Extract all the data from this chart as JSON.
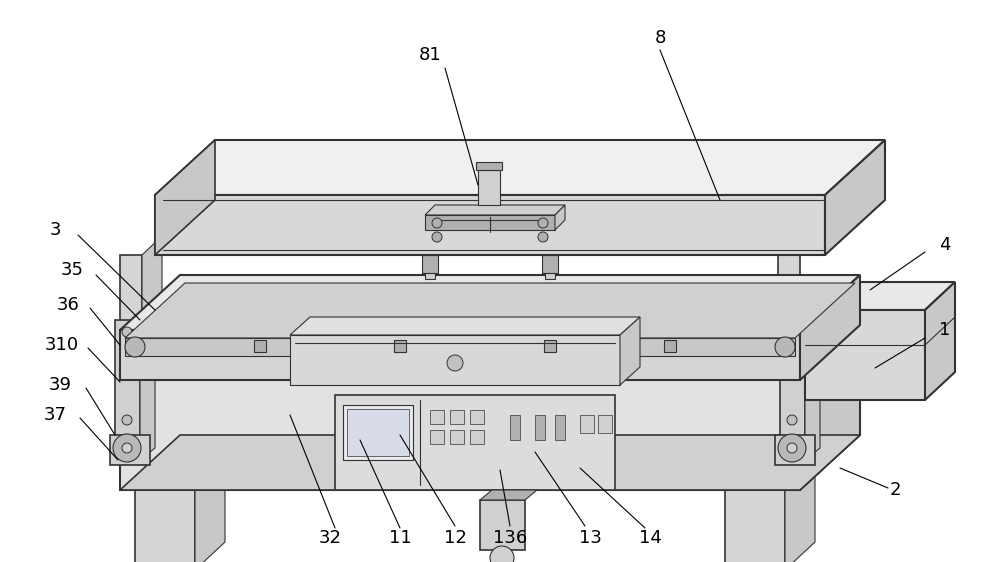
{
  "background_color": "#ffffff",
  "line_color": "#333333",
  "c_top": "#e8e8e8",
  "c_top2": "#f0f0f0",
  "c_front": "#d8d8d8",
  "c_side": "#c8c8c8",
  "c_dark": "#b0b0b0",
  "c_med": "#d0d0d0",
  "c_light": "#efefef",
  "c_white": "#ffffff",
  "figsize": [
    10.0,
    5.62
  ],
  "dpi": 100
}
